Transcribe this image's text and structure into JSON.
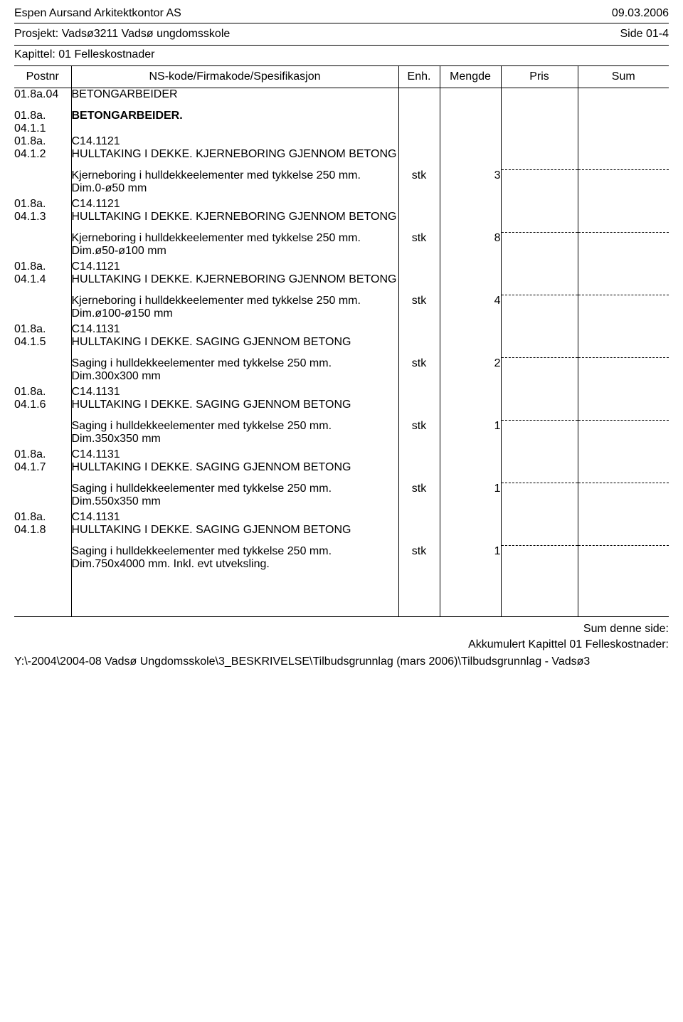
{
  "header": {
    "company": "Espen Aursand Arkitektkontor AS",
    "date": "09.03.2006",
    "project_prefix": "Prosjekt: ",
    "project": "Vadsø3211 Vadsø ungdomsskole",
    "side_label": "Side 01-4",
    "chapter_prefix": "Kapittel: ",
    "chapter": "01 Felleskostnader"
  },
  "columns": {
    "postnr": "Postnr",
    "spec": "NS-kode/Firmakode/Spesifikasjon",
    "enh": "Enh.",
    "mengde": "Mengde",
    "pris": "Pris",
    "sum": "Sum"
  },
  "rows": [
    {
      "postnr": "01.8a.04",
      "title": "BETONGARBEIDER",
      "bold": false
    },
    {
      "postnr": "01.8a. 04.1.1",
      "title": "BETONGARBEIDER.",
      "bold": true
    },
    {
      "postnr": "01.8a. 04.1.2",
      "code": "C14.1121",
      "title": "HULLTAKING I DEKKE. KJERNEBORING GJENNOM BETONG",
      "desc": "Kjerneboring i hulldekkeelementer med tykkelse 250 mm.",
      "dim": "Dim.0-ø50 mm",
      "enh": "stk",
      "mengde": "3"
    },
    {
      "postnr": "01.8a. 04.1.3",
      "code": "C14.1121",
      "title": "HULLTAKING I DEKKE. KJERNEBORING GJENNOM BETONG",
      "desc": "Kjerneboring i hulldekkeelementer med tykkelse 250 mm.",
      "dim": "Dim.ø50-ø100 mm",
      "enh": "stk",
      "mengde": "8"
    },
    {
      "postnr": "01.8a. 04.1.4",
      "code": "C14.1121",
      "title": "HULLTAKING I DEKKE. KJERNEBORING GJENNOM BETONG",
      "desc": "Kjerneboring i hulldekkeelementer med tykkelse 250 mm.",
      "dim": "Dim.ø100-ø150 mm",
      "enh": "stk",
      "mengde": "4"
    },
    {
      "postnr": "01.8a. 04.1.5",
      "code": "C14.1131",
      "title": "HULLTAKING I DEKKE. SAGING GJENNOM BETONG",
      "desc": "Saging i hulldekkeelementer med tykkelse 250 mm.",
      "dim": "Dim.300x300 mm",
      "enh": "stk",
      "mengde": "2"
    },
    {
      "postnr": "01.8a. 04.1.6",
      "code": "C14.1131",
      "title": "HULLTAKING I DEKKE. SAGING GJENNOM BETONG",
      "desc": "Saging i hulldekkeelementer med tykkelse 250 mm.",
      "dim": "Dim.350x350 mm",
      "enh": "stk",
      "mengde": "1"
    },
    {
      "postnr": "01.8a. 04.1.7",
      "code": "C14.1131",
      "title": "HULLTAKING I DEKKE. SAGING GJENNOM BETONG",
      "desc": "Saging i hulldekkeelementer med tykkelse 250 mm.",
      "dim": "Dim.550x350 mm",
      "enh": "stk",
      "mengde": "1"
    },
    {
      "postnr": "01.8a. 04.1.8",
      "code": "C14.1131",
      "title": "HULLTAKING I DEKKE. SAGING GJENNOM BETONG",
      "desc": "Saging i hulldekkeelementer med tykkelse 250 mm.",
      "dim": "Dim.750x4000 mm. Inkl. evt utveksling.",
      "enh": "stk",
      "mengde": "1"
    }
  ],
  "footer": {
    "sum_side": "Sum denne side:",
    "akk": "Akkumulert Kapittel 01 Felleskostnader:",
    "path": "Y:\\-2004\\2004-08 Vadsø Ungdomsskole\\3_BESKRIVELSE\\Tilbudsgrunnlag (mars 2006)\\Tilbudsgrunnlag - Vadsø3"
  }
}
